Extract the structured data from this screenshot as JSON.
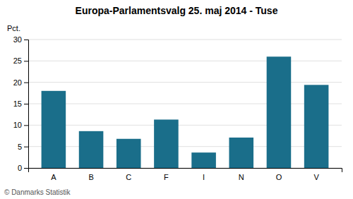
{
  "chart_data": {
    "type": "bar",
    "title": "Europa-Parlamentsvalg 25. maj 2014 - Tuse",
    "categories": [
      "A",
      "B",
      "C",
      "F",
      "I",
      "N",
      "O",
      "V"
    ],
    "values": [
      18.0,
      8.6,
      6.8,
      11.3,
      3.6,
      7.1,
      26.0,
      19.4
    ],
    "color": "#1a6e8a",
    "ylabel": "Pct.",
    "footer": "© Danmarks Statistik",
    "ylim": [
      0,
      30
    ],
    "yticks": [
      0,
      5,
      10,
      15,
      20,
      25,
      30
    ],
    "grid": true
  }
}
